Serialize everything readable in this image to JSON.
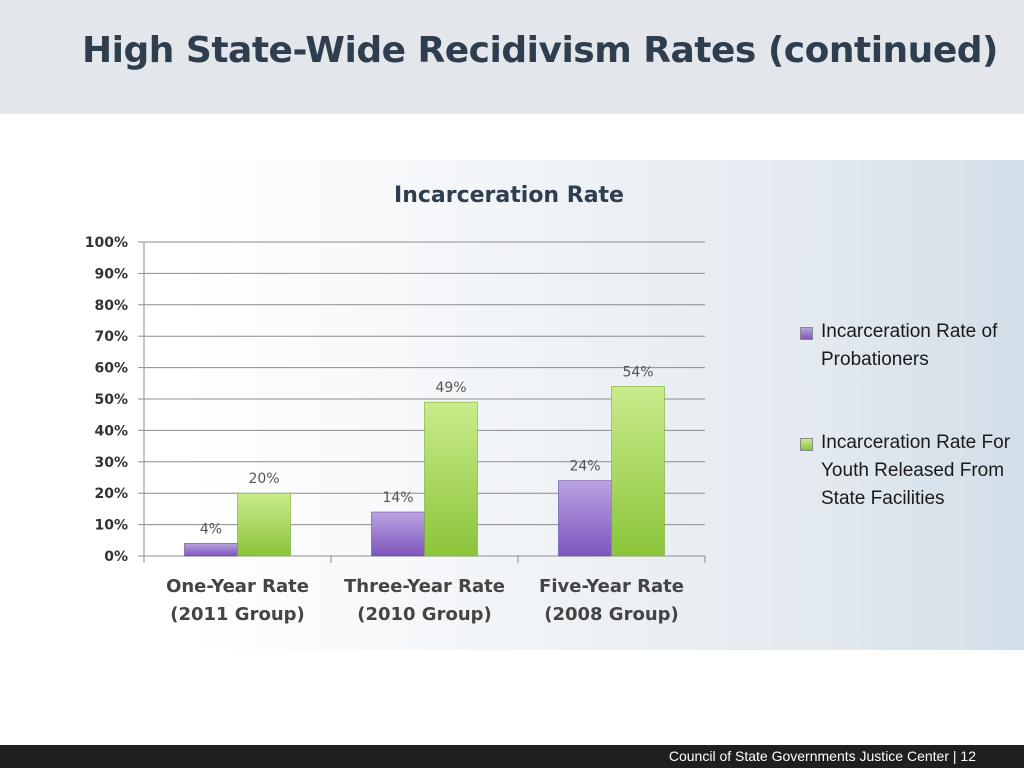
{
  "slide": {
    "title": "High State-Wide Recidivism Rates (continued)"
  },
  "colors": {
    "probationers_top": "#b9a3e0",
    "probationers_bottom": "#7d55be",
    "youth_top": "#c9ec8c",
    "youth_bottom": "#8bc43a",
    "grid": "#8c8c8c",
    "title_text": "#2f3e4e"
  },
  "chart_data": {
    "type": "bar",
    "title": "Incarceration Rate",
    "xlabel": "",
    "ylabel": "",
    "ylim": [
      0,
      100
    ],
    "y_ticks": [
      "0%",
      "10%",
      "20%",
      "30%",
      "40%",
      "50%",
      "60%",
      "70%",
      "80%",
      "90%",
      "100%"
    ],
    "categories": [
      [
        "One-Year Rate",
        "(2011 Group)"
      ],
      [
        "Three-Year Rate",
        "(2010 Group)"
      ],
      [
        "Five-Year Rate",
        "(2008 Group)"
      ]
    ],
    "series": [
      {
        "name": "Incarceration Rate of Probationers",
        "values": [
          4,
          14,
          24
        ],
        "labels": [
          "4%",
          "14%",
          "24%"
        ]
      },
      {
        "name": "Incarceration Rate For Youth Released From State Facilities",
        "values": [
          20,
          49,
          54
        ],
        "labels": [
          "20%",
          "49%",
          "54%"
        ]
      }
    ],
    "grid": true,
    "legend_position": "right"
  },
  "legend": {
    "items": [
      {
        "label": "Incarceration Rate of Probationers",
        "series": 0
      },
      {
        "label": "Incarceration Rate For Youth Released From State Facilities",
        "series": 1
      }
    ]
  },
  "footer": {
    "text": "Council of State Governments Justice Center  |  12"
  }
}
